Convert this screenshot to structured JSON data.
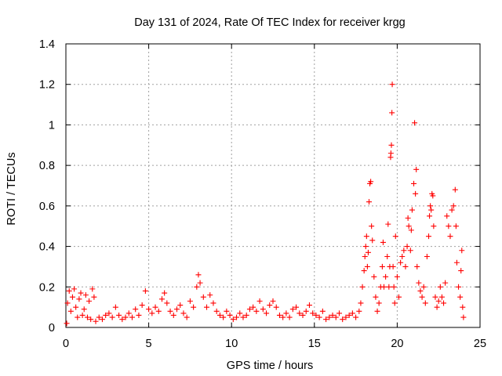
{
  "chart_data": {
    "type": "scatter",
    "title": "Day 131 of 2024, Rate Of TEC Index for receiver krgg",
    "xlabel": "GPS time / hours",
    "ylabel": "ROTI / TECUs",
    "xlim": [
      0,
      25
    ],
    "ylim": [
      0,
      1.4
    ],
    "x_ticks": [
      0,
      5,
      10,
      15,
      20,
      25
    ],
    "x_tick_labels": [
      "0",
      "5",
      "10",
      "15",
      "20",
      "25"
    ],
    "y_ticks": [
      0,
      0.2,
      0.4,
      0.6,
      0.8,
      1.0,
      1.2,
      1.4
    ],
    "y_tick_labels": [
      "0",
      "0.2",
      "0.4",
      "0.6",
      "0.8",
      "1",
      "1.2",
      "1.4"
    ],
    "grid": true,
    "marker": "+",
    "color": "#ff0000",
    "series": [
      {
        "name": "ROTI",
        "points": [
          [
            0.05,
            0.02
          ],
          [
            0.1,
            0.12
          ],
          [
            0.2,
            0.18
          ],
          [
            0.3,
            0.08
          ],
          [
            0.4,
            0.15
          ],
          [
            0.5,
            0.19
          ],
          [
            0.6,
            0.1
          ],
          [
            0.7,
            0.05
          ],
          [
            0.8,
            0.14
          ],
          [
            0.9,
            0.17
          ],
          [
            1.0,
            0.06
          ],
          [
            1.1,
            0.09
          ],
          [
            1.2,
            0.16
          ],
          [
            1.3,
            0.05
          ],
          [
            1.4,
            0.13
          ],
          [
            1.5,
            0.04
          ],
          [
            1.6,
            0.19
          ],
          [
            1.7,
            0.15
          ],
          [
            1.8,
            0.03
          ],
          [
            2.0,
            0.05
          ],
          [
            2.2,
            0.04
          ],
          [
            2.4,
            0.06
          ],
          [
            2.6,
            0.07
          ],
          [
            2.8,
            0.05
          ],
          [
            3.0,
            0.1
          ],
          [
            3.2,
            0.06
          ],
          [
            3.4,
            0.04
          ],
          [
            3.6,
            0.05
          ],
          [
            3.8,
            0.07
          ],
          [
            4.0,
            0.05
          ],
          [
            4.2,
            0.09
          ],
          [
            4.4,
            0.06
          ],
          [
            4.6,
            0.11
          ],
          [
            4.8,
            0.18
          ],
          [
            5.0,
            0.09
          ],
          [
            5.2,
            0.07
          ],
          [
            5.4,
            0.1
          ],
          [
            5.6,
            0.08
          ],
          [
            5.8,
            0.14
          ],
          [
            5.95,
            0.17
          ],
          [
            6.1,
            0.12
          ],
          [
            6.3,
            0.08
          ],
          [
            6.5,
            0.06
          ],
          [
            6.7,
            0.09
          ],
          [
            6.9,
            0.11
          ],
          [
            7.1,
            0.07
          ],
          [
            7.3,
            0.05
          ],
          [
            7.5,
            0.13
          ],
          [
            7.7,
            0.1
          ],
          [
            7.9,
            0.2
          ],
          [
            8.0,
            0.26
          ],
          [
            8.1,
            0.22
          ],
          [
            8.3,
            0.15
          ],
          [
            8.5,
            0.1
          ],
          [
            8.7,
            0.16
          ],
          [
            8.9,
            0.12
          ],
          [
            9.1,
            0.08
          ],
          [
            9.3,
            0.06
          ],
          [
            9.5,
            0.05
          ],
          [
            9.7,
            0.08
          ],
          [
            9.9,
            0.06
          ],
          [
            10.1,
            0.04
          ],
          [
            10.3,
            0.05
          ],
          [
            10.5,
            0.07
          ],
          [
            10.7,
            0.05
          ],
          [
            10.9,
            0.06
          ],
          [
            11.1,
            0.09
          ],
          [
            11.3,
            0.1
          ],
          [
            11.5,
            0.08
          ],
          [
            11.7,
            0.13
          ],
          [
            11.9,
            0.09
          ],
          [
            12.1,
            0.07
          ],
          [
            12.3,
            0.11
          ],
          [
            12.5,
            0.13
          ],
          [
            12.7,
            0.1
          ],
          [
            12.9,
            0.06
          ],
          [
            13.1,
            0.05
          ],
          [
            13.3,
            0.07
          ],
          [
            13.5,
            0.05
          ],
          [
            13.7,
            0.09
          ],
          [
            13.9,
            0.1
          ],
          [
            14.1,
            0.07
          ],
          [
            14.3,
            0.06
          ],
          [
            14.5,
            0.08
          ],
          [
            14.7,
            0.11
          ],
          [
            14.9,
            0.07
          ],
          [
            15.1,
            0.06
          ],
          [
            15.3,
            0.05
          ],
          [
            15.5,
            0.08
          ],
          [
            15.7,
            0.04
          ],
          [
            15.9,
            0.05
          ],
          [
            16.1,
            0.06
          ],
          [
            16.3,
            0.05
          ],
          [
            16.5,
            0.07
          ],
          [
            16.7,
            0.04
          ],
          [
            16.9,
            0.05
          ],
          [
            17.1,
            0.06
          ],
          [
            17.3,
            0.07
          ],
          [
            17.5,
            0.05
          ],
          [
            17.7,
            0.08
          ],
          [
            17.8,
            0.12
          ],
          [
            17.9,
            0.2
          ],
          [
            18.0,
            0.28
          ],
          [
            18.05,
            0.35
          ],
          [
            18.1,
            0.4
          ],
          [
            18.15,
            0.45
          ],
          [
            18.2,
            0.3
          ],
          [
            18.25,
            0.37
          ],
          [
            18.3,
            0.62
          ],
          [
            18.35,
            0.71
          ],
          [
            18.4,
            0.72
          ],
          [
            18.45,
            0.5
          ],
          [
            18.5,
            0.43
          ],
          [
            18.6,
            0.25
          ],
          [
            18.7,
            0.15
          ],
          [
            18.8,
            0.08
          ],
          [
            18.9,
            0.12
          ],
          [
            19.0,
            0.2
          ],
          [
            19.1,
            0.3
          ],
          [
            19.15,
            0.42
          ],
          [
            19.2,
            0.2
          ],
          [
            19.3,
            0.25
          ],
          [
            19.4,
            0.35
          ],
          [
            19.45,
            0.51
          ],
          [
            19.5,
            0.2
          ],
          [
            19.55,
            0.3
          ],
          [
            19.6,
            0.84
          ],
          [
            19.62,
            0.86
          ],
          [
            19.65,
            0.9
          ],
          [
            19.68,
            1.06
          ],
          [
            19.7,
            1.2
          ],
          [
            19.75,
            0.3
          ],
          [
            19.8,
            0.2
          ],
          [
            19.85,
            0.12
          ],
          [
            19.9,
            0.45
          ],
          [
            20.0,
            0.25
          ],
          [
            20.1,
            0.15
          ],
          [
            20.2,
            0.32
          ],
          [
            20.3,
            0.35
          ],
          [
            20.4,
            0.38
          ],
          [
            20.5,
            0.3
          ],
          [
            20.6,
            0.4
          ],
          [
            20.65,
            0.54
          ],
          [
            20.7,
            0.5
          ],
          [
            20.8,
            0.38
          ],
          [
            20.85,
            0.48
          ],
          [
            20.9,
            0.58
          ],
          [
            21.0,
            0.71
          ],
          [
            21.05,
            1.01
          ],
          [
            21.1,
            0.66
          ],
          [
            21.15,
            0.78
          ],
          [
            21.2,
            0.3
          ],
          [
            21.3,
            0.22
          ],
          [
            21.4,
            0.18
          ],
          [
            21.5,
            0.15
          ],
          [
            21.6,
            0.2
          ],
          [
            21.7,
            0.12
          ],
          [
            21.8,
            0.35
          ],
          [
            21.9,
            0.45
          ],
          [
            21.95,
            0.55
          ],
          [
            22.0,
            0.6
          ],
          [
            22.05,
            0.58
          ],
          [
            22.1,
            0.66
          ],
          [
            22.15,
            0.65
          ],
          [
            22.2,
            0.5
          ],
          [
            22.3,
            0.15
          ],
          [
            22.4,
            0.1
          ],
          [
            22.5,
            0.13
          ],
          [
            22.6,
            0.2
          ],
          [
            22.7,
            0.15
          ],
          [
            22.8,
            0.12
          ],
          [
            22.9,
            0.22
          ],
          [
            23.0,
            0.55
          ],
          [
            23.1,
            0.5
          ],
          [
            23.2,
            0.45
          ],
          [
            23.3,
            0.58
          ],
          [
            23.4,
            0.6
          ],
          [
            23.5,
            0.68
          ],
          [
            23.55,
            0.5
          ],
          [
            23.6,
            0.32
          ],
          [
            23.7,
            0.2
          ],
          [
            23.8,
            0.15
          ],
          [
            23.85,
            0.28
          ],
          [
            23.9,
            0.38
          ],
          [
            23.95,
            0.1
          ],
          [
            24.0,
            0.05
          ]
        ]
      }
    ]
  }
}
